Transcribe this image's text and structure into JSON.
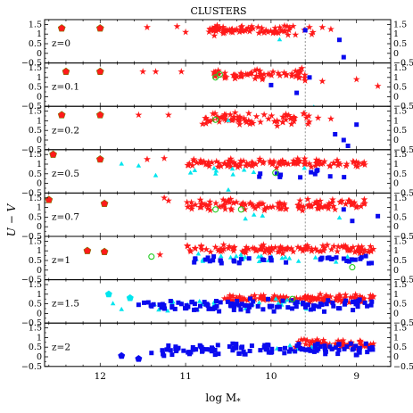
{
  "chart_data": {
    "type": "scatter",
    "title": "CLUSTERS",
    "xlabel": "log M",
    "xlabel_subscript": "*",
    "ylabel": "U − V",
    "xlim": [
      12.65,
      8.6
    ],
    "ylim": [
      -0.5,
      1.75
    ],
    "x_ticks": [
      12,
      11,
      10,
      9
    ],
    "x_tick_labels": [
      "12",
      "11",
      "10",
      "9"
    ],
    "y_tick_labels": [
      "1.5",
      "1",
      "0.5",
      "0",
      "−0.5"
    ],
    "y_tick_values": [
      1.5,
      1,
      0.5,
      0,
      -0.5
    ],
    "reference_line_x": 9.6,
    "marker_legend": {
      "red-star": "#ff1a1a",
      "red-pentagon": "#ff1a1a",
      "cyan-triangle": "#00e5ee",
      "blue-square": "#0a0aee",
      "blue-pentagon": "#0a0aee",
      "green-ring": "#22cc22",
      "cyan-pentagon": "#00e5ee"
    },
    "panels": [
      {
        "label": "z=0",
        "clouds": [
          {
            "marker": "red-star",
            "n": 75,
            "x": [
              10.75,
              9.5
            ],
            "y": [
              0.9,
              1.5
            ],
            "seed": 11
          }
        ],
        "points": [
          {
            "m": "red-pentagon",
            "x": 12.45,
            "y": 1.3
          },
          {
            "m": "red-pentagon",
            "x": 12.0,
            "y": 1.3
          },
          {
            "m": "red-star",
            "x": 11.45,
            "y": 1.35
          },
          {
            "m": "red-star",
            "x": 11.1,
            "y": 1.4
          },
          {
            "m": "red-star",
            "x": 11.0,
            "y": 1.1
          },
          {
            "m": "red-star",
            "x": 9.4,
            "y": 1.35
          },
          {
            "m": "red-star",
            "x": 9.3,
            "y": 1.25
          },
          {
            "m": "cyan-triangle",
            "x": 9.9,
            "y": 0.7
          },
          {
            "m": "blue-square",
            "x": 9.2,
            "y": 0.7
          },
          {
            "m": "blue-square",
            "x": 9.15,
            "y": -0.2
          },
          {
            "m": "blue-square",
            "x": 9.6,
            "y": 1.2
          }
        ]
      },
      {
        "label": "z=0.1",
        "clouds": [
          {
            "marker": "red-star",
            "n": 65,
            "x": [
              10.7,
              9.6
            ],
            "y": [
              0.8,
              1.5
            ],
            "seed": 23
          }
        ],
        "points": [
          {
            "m": "red-pentagon",
            "x": 12.4,
            "y": 1.3
          },
          {
            "m": "red-pentagon",
            "x": 12.0,
            "y": 1.3
          },
          {
            "m": "red-star",
            "x": 11.5,
            "y": 1.3
          },
          {
            "m": "red-star",
            "x": 11.35,
            "y": 1.3
          },
          {
            "m": "red-star",
            "x": 11.05,
            "y": 1.3
          },
          {
            "m": "red-star",
            "x": 9.4,
            "y": 0.8
          },
          {
            "m": "red-star",
            "x": 9.0,
            "y": 0.9
          },
          {
            "m": "red-star",
            "x": 8.75,
            "y": 0.55
          },
          {
            "m": "green-ring",
            "x": 10.65,
            "y": 1.0
          },
          {
            "m": "green-ring",
            "x": 10.6,
            "y": 1.15
          },
          {
            "m": "blue-square",
            "x": 10.0,
            "y": 0.6
          },
          {
            "m": "blue-square",
            "x": 9.7,
            "y": 0.2
          },
          {
            "m": "blue-square",
            "x": 9.55,
            "y": 1.0
          },
          {
            "m": "cyan-triangle",
            "x": 9.5,
            "y": -0.55
          }
        ]
      },
      {
        "label": "z=0.2",
        "clouds": [
          {
            "marker": "red-star",
            "n": 70,
            "x": [
              10.85,
              9.55
            ],
            "y": [
              0.7,
              1.5
            ],
            "seed": 37
          }
        ],
        "points": [
          {
            "m": "red-pentagon",
            "x": 12.45,
            "y": 1.3
          },
          {
            "m": "red-pentagon",
            "x": 12.0,
            "y": 1.3
          },
          {
            "m": "red-star",
            "x": 11.55,
            "y": 1.3
          },
          {
            "m": "red-star",
            "x": 11.2,
            "y": 1.3
          },
          {
            "m": "red-star",
            "x": 9.45,
            "y": 1.15
          },
          {
            "m": "red-star",
            "x": 9.3,
            "y": 1.1
          },
          {
            "m": "green-ring",
            "x": 10.65,
            "y": 1.05
          },
          {
            "m": "cyan-triangle",
            "x": 10.5,
            "y": 1.0
          },
          {
            "m": "blue-square",
            "x": 9.25,
            "y": 0.3
          },
          {
            "m": "blue-square",
            "x": 9.15,
            "y": 0.0
          },
          {
            "m": "blue-square",
            "x": 9.1,
            "y": -0.3
          },
          {
            "m": "blue-square",
            "x": 9.0,
            "y": 0.8
          }
        ]
      },
      {
        "label": "z=0.5",
        "clouds": [
          {
            "marker": "red-star",
            "n": 110,
            "x": [
              11.0,
              8.9
            ],
            "y": [
              0.8,
              1.3
            ],
            "seed": 41
          },
          {
            "marker": "blue-square",
            "n": 12,
            "x": [
              10.2,
              9.0
            ],
            "y": [
              0.2,
              0.8
            ],
            "seed": 43
          },
          {
            "marker": "cyan-triangle",
            "n": 10,
            "x": [
              11.4,
              9.6
            ],
            "y": [
              0.4,
              0.9
            ],
            "seed": 47
          }
        ],
        "points": [
          {
            "m": "red-pentagon",
            "x": 12.55,
            "y": 1.5
          },
          {
            "m": "red-pentagon",
            "x": 12.0,
            "y": 1.25
          },
          {
            "m": "cyan-triangle",
            "x": 11.75,
            "y": 1.0
          },
          {
            "m": "cyan-triangle",
            "x": 11.55,
            "y": 0.9
          },
          {
            "m": "red-star",
            "x": 11.45,
            "y": 1.25
          },
          {
            "m": "red-star",
            "x": 11.25,
            "y": 1.3
          },
          {
            "m": "cyan-triangle",
            "x": 11.35,
            "y": 0.4
          },
          {
            "m": "cyan-triangle",
            "x": 10.5,
            "y": -0.35
          },
          {
            "m": "green-ring",
            "x": 9.95,
            "y": 0.55
          }
        ]
      },
      {
        "label": "z=0.7",
        "clouds": [
          {
            "marker": "red-star",
            "n": 120,
            "x": [
              11.0,
              8.9
            ],
            "y": [
              0.8,
              1.5
            ],
            "seed": 53
          }
        ],
        "points": [
          {
            "m": "red-pentagon",
            "x": 12.6,
            "y": 1.4
          },
          {
            "m": "red-pentagon",
            "x": 11.95,
            "y": 1.2
          },
          {
            "m": "red-star",
            "x": 11.25,
            "y": 1.5
          },
          {
            "m": "red-star",
            "x": 11.2,
            "y": 1.35
          },
          {
            "m": "green-ring",
            "x": 10.65,
            "y": 0.9
          },
          {
            "m": "green-ring",
            "x": 10.35,
            "y": 0.9
          },
          {
            "m": "cyan-triangle",
            "x": 10.2,
            "y": 0.6
          },
          {
            "m": "cyan-triangle",
            "x": 10.1,
            "y": 0.55
          },
          {
            "m": "cyan-triangle",
            "x": 10.3,
            "y": 0.4
          },
          {
            "m": "cyan-triangle",
            "x": 9.2,
            "y": 0.45
          },
          {
            "m": "blue-square",
            "x": 9.15,
            "y": 0.9
          },
          {
            "m": "blue-square",
            "x": 8.75,
            "y": 0.55
          },
          {
            "m": "blue-square",
            "x": 9.05,
            "y": 0.3
          }
        ]
      },
      {
        "label": "z=1",
        "clouds": [
          {
            "marker": "red-star",
            "n": 120,
            "x": [
              11.0,
              8.8
            ],
            "y": [
              0.8,
              1.35
            ],
            "seed": 61
          },
          {
            "marker": "blue-square",
            "n": 40,
            "x": [
              10.9,
              8.8
            ],
            "y": [
              0.3,
              0.8
            ],
            "seed": 67
          },
          {
            "marker": "cyan-triangle",
            "n": 25,
            "x": [
              11.0,
              9.0
            ],
            "y": [
              0.35,
              0.85
            ],
            "seed": 71
          }
        ],
        "points": [
          {
            "m": "red-pentagon",
            "x": 12.15,
            "y": 1.0
          },
          {
            "m": "red-pentagon",
            "x": 11.95,
            "y": 0.95
          },
          {
            "m": "green-ring",
            "x": 11.4,
            "y": 0.7
          },
          {
            "m": "green-ring",
            "x": 9.05,
            "y": 0.15
          },
          {
            "m": "red-star",
            "x": 11.3,
            "y": 0.8
          }
        ]
      },
      {
        "label": "z=1.5",
        "clouds": [
          {
            "marker": "red-star",
            "n": 120,
            "x": [
              10.55,
              8.8
            ],
            "y": [
              0.55,
              1.0
            ],
            "seed": 73
          },
          {
            "marker": "blue-square",
            "n": 110,
            "x": [
              11.5,
              8.8
            ],
            "y": [
              0.05,
              0.85
            ],
            "seed": 79
          },
          {
            "marker": "cyan-triangle",
            "n": 25,
            "x": [
              11.4,
              9.3
            ],
            "y": [
              0.1,
              0.8
            ],
            "seed": 83
          }
        ],
        "points": [
          {
            "m": "cyan-pentagon",
            "x": 11.9,
            "y": 1.0
          },
          {
            "m": "cyan-pentagon",
            "x": 11.65,
            "y": 0.8
          },
          {
            "m": "cyan-triangle",
            "x": 11.85,
            "y": 0.5
          },
          {
            "m": "cyan-triangle",
            "x": 11.75,
            "y": 0.2
          },
          {
            "m": "blue-square",
            "x": 11.55,
            "y": 0.45
          },
          {
            "m": "green-ring",
            "x": 9.75,
            "y": 0.75
          }
        ]
      },
      {
        "label": "z=2",
        "clouds": [
          {
            "marker": "red-star",
            "n": 65,
            "x": [
              9.75,
              8.8
            ],
            "y": [
              0.4,
              0.95
            ],
            "seed": 89
          },
          {
            "marker": "blue-square",
            "n": 120,
            "x": [
              11.3,
              8.8
            ],
            "y": [
              0.05,
              0.7
            ],
            "seed": 97
          },
          {
            "marker": "cyan-triangle",
            "n": 12,
            "x": [
              10.0,
              9.2
            ],
            "y": [
              0.25,
              0.7
            ],
            "seed": 101
          }
        ],
        "points": [
          {
            "m": "blue-pentagon",
            "x": 11.75,
            "y": 0.05
          },
          {
            "m": "blue-pentagon",
            "x": 11.55,
            "y": -0.1
          },
          {
            "m": "blue-square",
            "x": 11.4,
            "y": 0.2
          }
        ]
      }
    ]
  }
}
